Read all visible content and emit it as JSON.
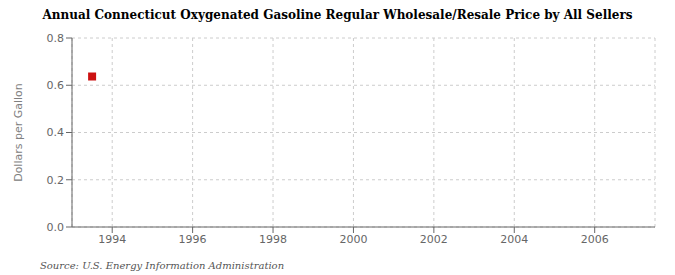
{
  "chart_data": {
    "type": "scatter",
    "title": "Annual Connecticut Oxygenated Gasoline Regular Wholesale/Resale Price by All Sellers",
    "y_label": "Dollars per Gallon",
    "annotations": [
      "Source: U.S. Energy Information Administration"
    ],
    "x": [
      1993.5
    ],
    "values": [
      0.637
    ],
    "color": "#cc1111",
    "marker": "square",
    "xlim": [
      1993,
      2007.5
    ],
    "ylim": [
      0,
      0.8
    ],
    "xticks": [
      1994,
      1996,
      1998,
      2000,
      2002,
      2004,
      2006
    ],
    "yticks": [
      {
        "value": 0,
        "label": "0.0"
      },
      0.2,
      0.4,
      0.6,
      0.8
    ],
    "grid": true
  }
}
